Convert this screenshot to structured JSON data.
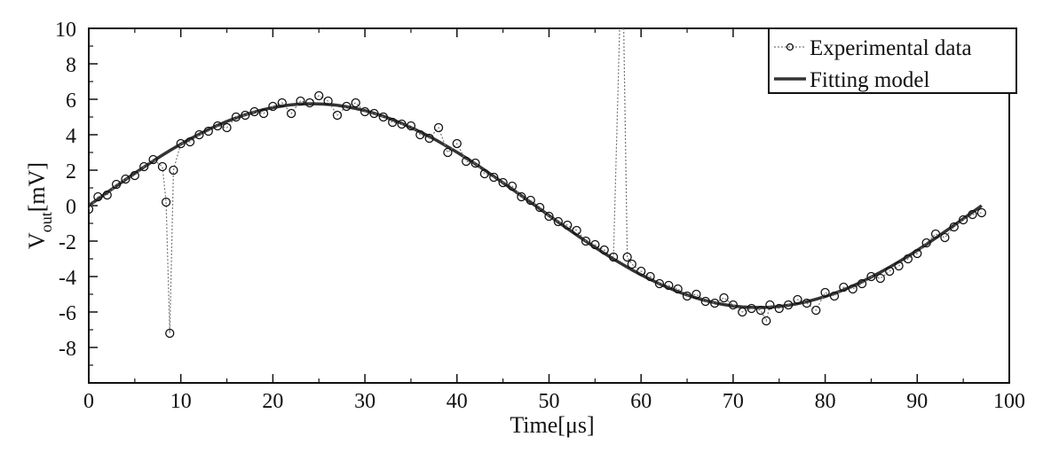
{
  "chart_data": {
    "type": "line",
    "xlabel": "Time[μs]",
    "ylabel": {
      "main": "V",
      "sub": "out",
      "unit": "[mV]"
    },
    "xlim": [
      0,
      100
    ],
    "ylim": [
      -10,
      10
    ],
    "xticks": [
      0,
      10,
      20,
      30,
      40,
      50,
      60,
      70,
      80,
      90,
      100
    ],
    "yticks": [
      10,
      8,
      6,
      4,
      2,
      0,
      -2,
      -4,
      -6,
      -8
    ],
    "grid": false,
    "legend_position": "top-right",
    "series": [
      {
        "name": "Experimental data",
        "style": "dotted line with open circles",
        "color": "#000000",
        "points": [
          [
            0,
            -0.2
          ],
          [
            1,
            0.5
          ],
          [
            2,
            0.6
          ],
          [
            3,
            1.2
          ],
          [
            4,
            1.5
          ],
          [
            5,
            1.7
          ],
          [
            6,
            2.2
          ],
          [
            7,
            2.6
          ],
          [
            8,
            2.2
          ],
          [
            8.4,
            0.2
          ],
          [
            8.8,
            -7.2
          ],
          [
            9.2,
            2.0
          ],
          [
            10,
            3.5
          ],
          [
            11,
            3.6
          ],
          [
            12,
            4.0
          ],
          [
            13,
            4.2
          ],
          [
            14,
            4.5
          ],
          [
            15,
            4.4
          ],
          [
            16,
            5.0
          ],
          [
            17,
            5.1
          ],
          [
            18,
            5.3
          ],
          [
            19,
            5.2
          ],
          [
            20,
            5.6
          ],
          [
            21,
            5.8
          ],
          [
            22,
            5.2
          ],
          [
            23,
            5.9
          ],
          [
            24,
            5.8
          ],
          [
            25,
            6.2
          ],
          [
            26,
            5.9
          ],
          [
            27,
            5.1
          ],
          [
            28,
            5.6
          ],
          [
            29,
            5.8
          ],
          [
            30,
            5.3
          ],
          [
            31,
            5.2
          ],
          [
            32,
            5.0
          ],
          [
            33,
            4.7
          ],
          [
            34,
            4.6
          ],
          [
            35,
            4.5
          ],
          [
            36,
            4.0
          ],
          [
            37,
            3.8
          ],
          [
            38,
            4.4
          ],
          [
            39,
            3.0
          ],
          [
            40,
            3.5
          ],
          [
            41,
            2.5
          ],
          [
            42,
            2.4
          ],
          [
            43,
            1.8
          ],
          [
            44,
            1.6
          ],
          [
            45,
            1.3
          ],
          [
            46,
            1.1
          ],
          [
            47,
            0.5
          ],
          [
            48,
            0.3
          ],
          [
            49,
            -0.1
          ],
          [
            50,
            -0.6
          ],
          [
            51,
            -0.9
          ],
          [
            52,
            -1.1
          ],
          [
            53,
            -1.4
          ],
          [
            54,
            -2.0
          ],
          [
            55,
            -2.2
          ],
          [
            56,
            -2.5
          ],
          [
            57,
            -2.9
          ],
          [
            57.7,
            10.5
          ],
          [
            58.1,
            10.5
          ],
          [
            58.5,
            -2.9
          ],
          [
            59,
            -3.3
          ],
          [
            60,
            -3.7
          ],
          [
            61,
            -4.0
          ],
          [
            62,
            -4.4
          ],
          [
            63,
            -4.5
          ],
          [
            64,
            -4.7
          ],
          [
            65,
            -5.1
          ],
          [
            66,
            -5.0
          ],
          [
            67,
            -5.4
          ],
          [
            68,
            -5.5
          ],
          [
            69,
            -5.2
          ],
          [
            70,
            -5.6
          ],
          [
            71,
            -6.0
          ],
          [
            72,
            -5.8
          ],
          [
            73,
            -5.9
          ],
          [
            73.6,
            -6.5
          ],
          [
            74,
            -5.6
          ],
          [
            75,
            -5.8
          ],
          [
            76,
            -5.6
          ],
          [
            77,
            -5.3
          ],
          [
            78,
            -5.5
          ],
          [
            79,
            -5.9
          ],
          [
            80,
            -4.9
          ],
          [
            81,
            -5.1
          ],
          [
            82,
            -4.6
          ],
          [
            83,
            -4.7
          ],
          [
            84,
            -4.4
          ],
          [
            85,
            -4.0
          ],
          [
            86,
            -4.1
          ],
          [
            87,
            -3.7
          ],
          [
            88,
            -3.4
          ],
          [
            89,
            -3.0
          ],
          [
            90,
            -2.7
          ],
          [
            91,
            -2.1
          ],
          [
            92,
            -1.6
          ],
          [
            93,
            -1.8
          ],
          [
            94,
            -1.2
          ],
          [
            95,
            -0.8
          ],
          [
            96,
            -0.5
          ],
          [
            97,
            -0.4
          ]
        ]
      },
      {
        "name": "Fitting model",
        "style": "thick solid line",
        "color": "#333333",
        "x": [
          0,
          1,
          2,
          3,
          4,
          5,
          6,
          7,
          8,
          9,
          10,
          11,
          12,
          13,
          14,
          15,
          16,
          17,
          18,
          19,
          20,
          21,
          22,
          23,
          24,
          25,
          26,
          27,
          28,
          29,
          30,
          31,
          32,
          33,
          34,
          35,
          36,
          37,
          38,
          39,
          40,
          41,
          42,
          43,
          44,
          45,
          46,
          47,
          48,
          49,
          50,
          51,
          52,
          53,
          54,
          55,
          56,
          57,
          58,
          59,
          60,
          61,
          62,
          63,
          64,
          65,
          66,
          67,
          68,
          69,
          70,
          71,
          72,
          73,
          74,
          75,
          76,
          77,
          78,
          79,
          80,
          81,
          82,
          83,
          84,
          85,
          86,
          87,
          88,
          89,
          90,
          91,
          92,
          93,
          94,
          95,
          96,
          97
        ],
        "y": [
          0,
          0.37,
          0.74,
          1.11,
          1.47,
          1.83,
          2.18,
          2.52,
          2.85,
          3.17,
          3.47,
          3.76,
          4.03,
          4.29,
          4.53,
          4.75,
          4.95,
          5.13,
          5.28,
          5.42,
          5.53,
          5.62,
          5.69,
          5.73,
          5.75,
          5.74,
          5.71,
          5.66,
          5.58,
          5.48,
          5.36,
          5.21,
          5.04,
          4.85,
          4.64,
          4.41,
          4.16,
          3.9,
          3.62,
          3.32,
          3.01,
          2.69,
          2.35,
          2.01,
          1.65,
          1.29,
          0.93,
          0.56,
          0.19,
          -0.18,
          -0.56,
          -0.93,
          -1.29,
          -1.65,
          -2.01,
          -2.35,
          -2.69,
          -3.01,
          -3.32,
          -3.62,
          -3.9,
          -4.16,
          -4.41,
          -4.64,
          -4.85,
          -5.04,
          -5.21,
          -5.36,
          -5.48,
          -5.58,
          -5.66,
          -5.71,
          -5.74,
          -5.75,
          -5.73,
          -5.69,
          -5.62,
          -5.53,
          -5.42,
          -5.28,
          -5.13,
          -4.95,
          -4.75,
          -4.53,
          -4.29,
          -4.03,
          -3.76,
          -3.47,
          -3.17,
          -2.85,
          -2.52,
          -2.18,
          -1.83,
          -1.47,
          -1.11,
          -0.74,
          -0.37,
          0
        ]
      }
    ]
  }
}
